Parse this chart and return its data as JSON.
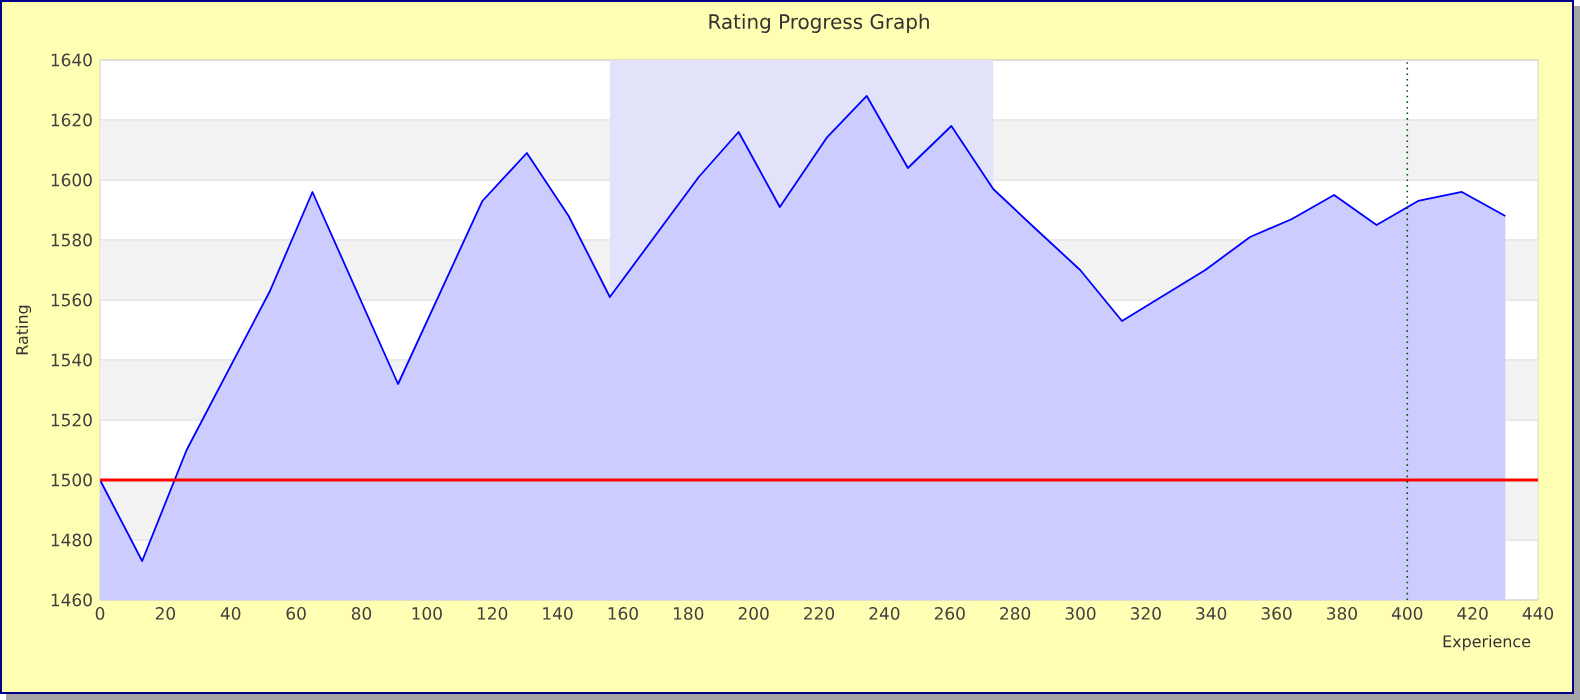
{
  "chart_data": {
    "type": "area",
    "title": "Rating Progress Graph",
    "xlabel": "Experience",
    "ylabel": "Rating",
    "x": [
      0,
      12.9,
      26.5,
      52,
      65,
      91.2,
      117,
      130.6,
      143.4,
      156,
      183.2,
      195.4,
      208,
      222.3,
      234.6,
      247.2,
      260.5,
      273.3,
      286,
      299.9,
      312.7,
      338.2,
      351.9,
      364.7,
      377.6,
      390.6,
      403.3,
      416.7,
      430
    ],
    "series": [
      {
        "color": "#0000ff",
        "values": [
          1500,
          1473,
          1510,
          1563,
          1596,
          1532,
          1593,
          1609,
          1588,
          1561,
          1601,
          1616,
          1591,
          1614,
          1628,
          1604,
          1618,
          1597,
          1584,
          1570,
          1553,
          1570,
          1581,
          1587,
          1595,
          1585,
          1593,
          1596,
          1588
        ]
      }
    ],
    "xlim": [
      0,
      440
    ],
    "ylim": [
      1460,
      1640
    ],
    "xticks": [
      0,
      20,
      40,
      60,
      80,
      100,
      120,
      140,
      160,
      180,
      200,
      220,
      240,
      260,
      280,
      300,
      320,
      340,
      360,
      380,
      400,
      420,
      440
    ],
    "yticks": [
      1460,
      1480,
      1500,
      1520,
      1540,
      1560,
      1580,
      1600,
      1620,
      1640
    ],
    "grid": "y",
    "ref_lines": [
      {
        "axis": "y",
        "value": 1500,
        "color": "#ff0000",
        "line_style": "solid"
      },
      {
        "axis": "x",
        "value": 400,
        "color": "#005500",
        "line_style": "dotted"
      }
    ],
    "bands": [
      {
        "axis": "x",
        "from": 156,
        "to": 273.3,
        "color": "#e2e2fb"
      }
    ]
  }
}
